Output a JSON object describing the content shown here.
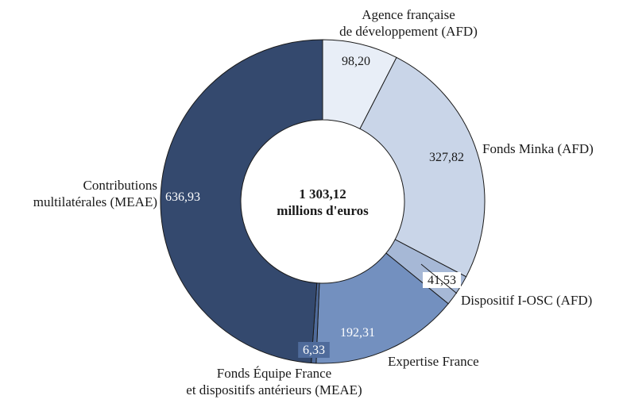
{
  "chart_data": {
    "type": "pie",
    "variant": "donut",
    "title": "",
    "center_label": {
      "line1": "1 303,12",
      "line2": "millions d'euros"
    },
    "total": 1303.12,
    "slices": [
      {
        "label_lines": [
          "Agence française",
          "de développement (AFD)"
        ],
        "value": 98.2,
        "value_label": "98,20",
        "color": "#e8eef7"
      },
      {
        "label_lines": [
          "Fonds Minka (AFD)"
        ],
        "value": 327.82,
        "value_label": "327,82",
        "color": "#c9d5e8"
      },
      {
        "label_lines": [
          "Dispositif I-OSC (AFD)"
        ],
        "value": 41.53,
        "value_label": "41,53",
        "color": "#a6b8d6"
      },
      {
        "label_lines": [
          "Expertise France"
        ],
        "value": 192.31,
        "value_label": "192,31",
        "color": "#7390bf"
      },
      {
        "label_lines": [
          "Fonds Équipe France",
          "et dispositifs antérieurs (MEAE)"
        ],
        "value": 6.33,
        "value_label": "6,33",
        "color": "#4f6b9b"
      },
      {
        "label_lines": [
          "Contributions",
          "multilatérales (MEAE)"
        ],
        "value": 636.93,
        "value_label": "636,93",
        "color": "#34496e"
      }
    ]
  }
}
